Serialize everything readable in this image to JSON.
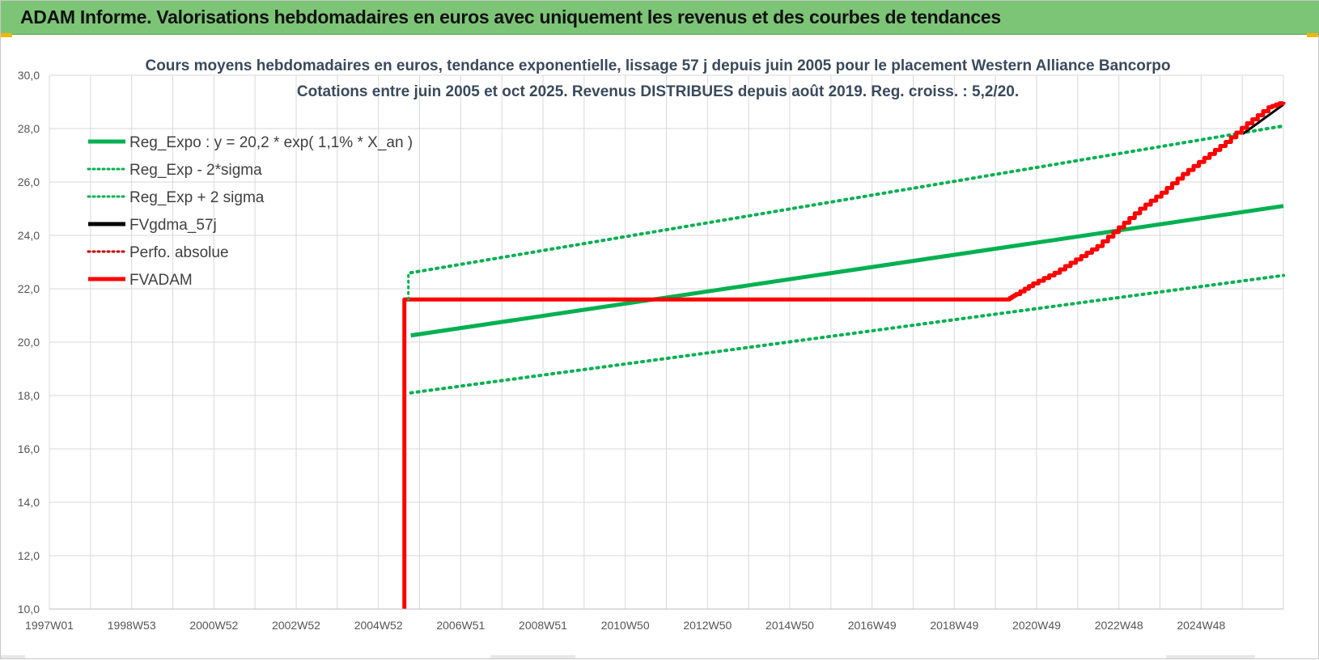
{
  "header": {
    "title": "ADAM Informe. Valorisations hebdomadaires en euros avec uniquement les revenus et des courbes de tendances"
  },
  "colors": {
    "header_bg": "#7cc576",
    "green": "#00b050",
    "red": "#ff0000",
    "black": "#000000",
    "dark_red": "#c00000",
    "grid": "#d9d9d9"
  },
  "chart_data": {
    "type": "line",
    "title_lines": [
      "Cours moyens hebdomadaires en euros, tendance exponentielle, lissage 57 j depuis juin 2005 pour le placement Western Alliance Bancorpo",
      "Cotations entre juin 2005 et oct 2025. Revenus DISTRIBUES depuis août 2019. Reg. croiss. : 5,2/20."
    ],
    "x_tick_labels": [
      "1997W01",
      "1998W53",
      "2000W52",
      "2002W52",
      "2004W52",
      "2006W51",
      "2008W51",
      "2010W50",
      "2012W50",
      "2014W50",
      "2016W49",
      "2018W49",
      "2020W49",
      "2022W48",
      "2024W48"
    ],
    "x_range": [
      1997.0,
      2025.85
    ],
    "y_range": [
      10.0,
      30.0
    ],
    "y_tick_labels": [
      "10,0",
      "12,0",
      "14,0",
      "16,0",
      "18,0",
      "20,0",
      "22,0",
      "24,0",
      "26,0",
      "28,0",
      "30,0"
    ],
    "y_ticks": [
      10,
      12,
      14,
      16,
      18,
      20,
      22,
      24,
      26,
      28,
      30
    ],
    "grid": true,
    "legend_position": "top-left",
    "legend": [
      {
        "label": "Reg_Expo : y = 20,2 * exp( 1,1% *  X_an )",
        "color": "#00b050",
        "style": "solid"
      },
      {
        "label": "Reg_Exp - 2*sigma",
        "color": "#00b050",
        "style": "dotted"
      },
      {
        "label": "Reg_Exp + 2 sigma",
        "color": "#00b050",
        "style": "dotted"
      },
      {
        "label": "FVgdma_57j",
        "color": "#000000",
        "style": "solid"
      },
      {
        "label": "Perfo. absolue",
        "color": "#c00000",
        "style": "dotted"
      },
      {
        "label": "FVADAM",
        "color": "#ff0000",
        "style": "solid"
      }
    ],
    "series": [
      {
        "name": "Reg_Expo : y = 20,2 * exp( 1,1% *  X_an )",
        "x": [
          2005.45,
          2025.85
        ],
        "y": [
          20.25,
          25.1
        ]
      },
      {
        "name": "Reg_Exp - 2*sigma",
        "x": [
          2005.45,
          2025.85
        ],
        "y": [
          18.1,
          22.5
        ]
      },
      {
        "name": "Reg_Exp + 2 sigma",
        "x": [
          2005.45,
          2025.85
        ],
        "y": [
          22.6,
          28.1
        ]
      },
      {
        "name": "FVgdma_57j",
        "x": [
          2024.9,
          2025.85
        ],
        "y": [
          27.8,
          28.9
        ]
      },
      {
        "name": "FVADAM",
        "x": [
          2005.3,
          2005.3,
          2019.4,
          2019.6,
          2020.0,
          2020.5,
          2021.0,
          2021.5,
          2022.0,
          2022.5,
          2023.0,
          2023.5,
          2024.0,
          2024.5,
          2025.0,
          2025.5,
          2025.85
        ],
        "y": [
          10.0,
          21.6,
          21.6,
          21.8,
          22.2,
          22.6,
          23.1,
          23.6,
          24.3,
          25.0,
          25.6,
          26.3,
          26.9,
          27.5,
          28.2,
          28.8,
          29.0
        ]
      }
    ]
  }
}
